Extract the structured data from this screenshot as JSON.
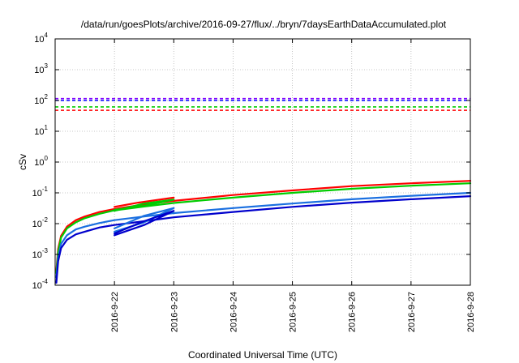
{
  "chart_data": {
    "type": "line",
    "title": "/data/run/goesPlots/archive/2016-09-27/flux/../bryn/7daysEarthDataAccumulated.plot",
    "xlabel": "Coordinated Universal Time (UTC)",
    "ylabel": "cSv",
    "yscale": "log",
    "ylim": [
      0.0001,
      10000
    ],
    "xlim": [
      0,
      7
    ],
    "grid": true,
    "legend": "none",
    "y_ticks": [
      {
        "base": "10",
        "exp": "-4",
        "value": 0.0001
      },
      {
        "base": "10",
        "exp": "-3",
        "value": 0.001
      },
      {
        "base": "10",
        "exp": "-2",
        "value": 0.01
      },
      {
        "base": "10",
        "exp": "-1",
        "value": 0.1
      },
      {
        "base": "10",
        "exp": "0",
        "value": 1
      },
      {
        "base": "10",
        "exp": "1",
        "value": 10
      },
      {
        "base": "10",
        "exp": "2",
        "value": 100
      },
      {
        "base": "10",
        "exp": "3",
        "value": 1000
      },
      {
        "base": "10",
        "exp": "4",
        "value": 10000
      }
    ],
    "x_ticks": [
      {
        "label": "2016-9-22",
        "value": 1
      },
      {
        "label": "2016-9-23",
        "value": 2
      },
      {
        "label": "2016-9-24",
        "value": 3
      },
      {
        "label": "2016-9-25",
        "value": 4
      },
      {
        "label": "2016-9-26",
        "value": 5
      },
      {
        "label": "2016-9-27",
        "value": 6
      },
      {
        "label": "2016-9-28",
        "value": 7
      }
    ],
    "thresholds": [
      {
        "color": "#7f00ff",
        "value": 115
      },
      {
        "color": "#0000ff",
        "value": 100
      },
      {
        "color": "#00cc00",
        "value": 62
      },
      {
        "color": "#ff0000",
        "value": 48
      }
    ],
    "series": [
      {
        "color": "#ff0000",
        "x": [
          0.02,
          0.05,
          0.1,
          0.2,
          0.35,
          0.5,
          0.75,
          1.0,
          1.5,
          2.0,
          3.0,
          4.0,
          5.0,
          6.0,
          7.0
        ],
        "y": [
          0.0003,
          0.0015,
          0.004,
          0.008,
          0.013,
          0.017,
          0.024,
          0.03,
          0.042,
          0.055,
          0.085,
          0.12,
          0.165,
          0.205,
          0.245
        ]
      },
      {
        "color": "#00cc00",
        "x": [
          0.02,
          0.05,
          0.1,
          0.2,
          0.35,
          0.5,
          0.75,
          1.0,
          1.5,
          2.0,
          3.0,
          4.0,
          5.0,
          6.0,
          7.0
        ],
        "y": [
          0.00025,
          0.0012,
          0.0035,
          0.007,
          0.011,
          0.015,
          0.021,
          0.027,
          0.036,
          0.047,
          0.07,
          0.1,
          0.135,
          0.17,
          0.205
        ]
      },
      {
        "color": "#1a6fe0",
        "x": [
          0.02,
          0.05,
          0.1,
          0.2,
          0.35,
          0.5,
          0.75,
          1.0,
          1.5,
          2.0,
          3.0,
          4.0,
          5.0,
          6.0,
          7.0
        ],
        "y": [
          0.00018,
          0.0008,
          0.0022,
          0.0042,
          0.0065,
          0.008,
          0.0105,
          0.013,
          0.017,
          0.022,
          0.032,
          0.045,
          0.062,
          0.08,
          0.1
        ]
      },
      {
        "color": "#0000cc",
        "x": [
          0.02,
          0.05,
          0.1,
          0.2,
          0.35,
          0.5,
          0.75,
          1.0,
          1.5,
          2.0,
          3.0,
          4.0,
          5.0,
          6.0,
          7.0
        ],
        "y": [
          0.00012,
          0.0006,
          0.0016,
          0.003,
          0.0045,
          0.0055,
          0.0075,
          0.009,
          0.012,
          0.016,
          0.024,
          0.035,
          0.048,
          0.062,
          0.078
        ]
      },
      {
        "color": "#ff0000",
        "x": [
          1.0,
          1.4,
          2.0
        ],
        "y": [
          0.035,
          0.048,
          0.07
        ]
      },
      {
        "color": "#00cc00",
        "x": [
          1.0,
          1.5,
          2.0,
          1.5,
          1.0
        ],
        "y": [
          0.028,
          0.038,
          0.06,
          0.045,
          0.026
        ]
      },
      {
        "color": "#1a6fe0",
        "x": [
          1.0,
          1.5,
          2.0,
          1.5,
          1.0
        ],
        "y": [
          0.0055,
          0.011,
          0.032,
          0.018,
          0.007
        ]
      },
      {
        "color": "#0000cc",
        "x": [
          1.0,
          1.5,
          2.0,
          1.5,
          1.0
        ],
        "y": [
          0.0042,
          0.009,
          0.026,
          0.012,
          0.0048
        ]
      }
    ]
  }
}
